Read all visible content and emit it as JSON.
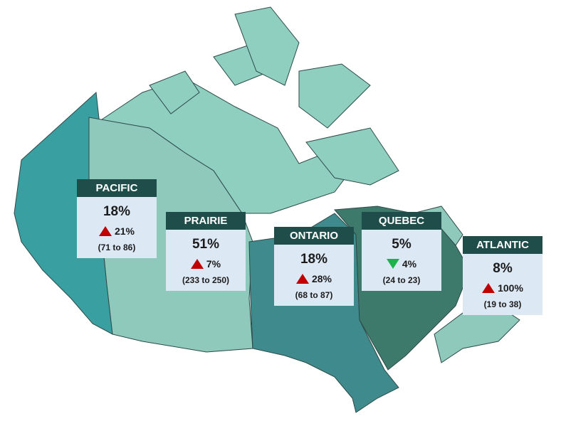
{
  "regions": [
    {
      "name": "PACIFIC",
      "value": "18%",
      "change": "21%",
      "trend": "up",
      "range": "(71 to 86)"
    },
    {
      "name": "PRAIRIE",
      "value": "51%",
      "change": "7%",
      "trend": "up",
      "range": "(233 to 250)"
    },
    {
      "name": "ONTARIO",
      "value": "18%",
      "change": "28%",
      "trend": "up",
      "range": "(68 to 87)"
    },
    {
      "name": "QUEBEC",
      "value": "5%",
      "change": "4%",
      "trend": "down",
      "range": "(24 to 23)"
    },
    {
      "name": "ATLANTIC",
      "value": "8%",
      "change": "100%",
      "trend": "up",
      "range": "(19 to 38)"
    }
  ]
}
